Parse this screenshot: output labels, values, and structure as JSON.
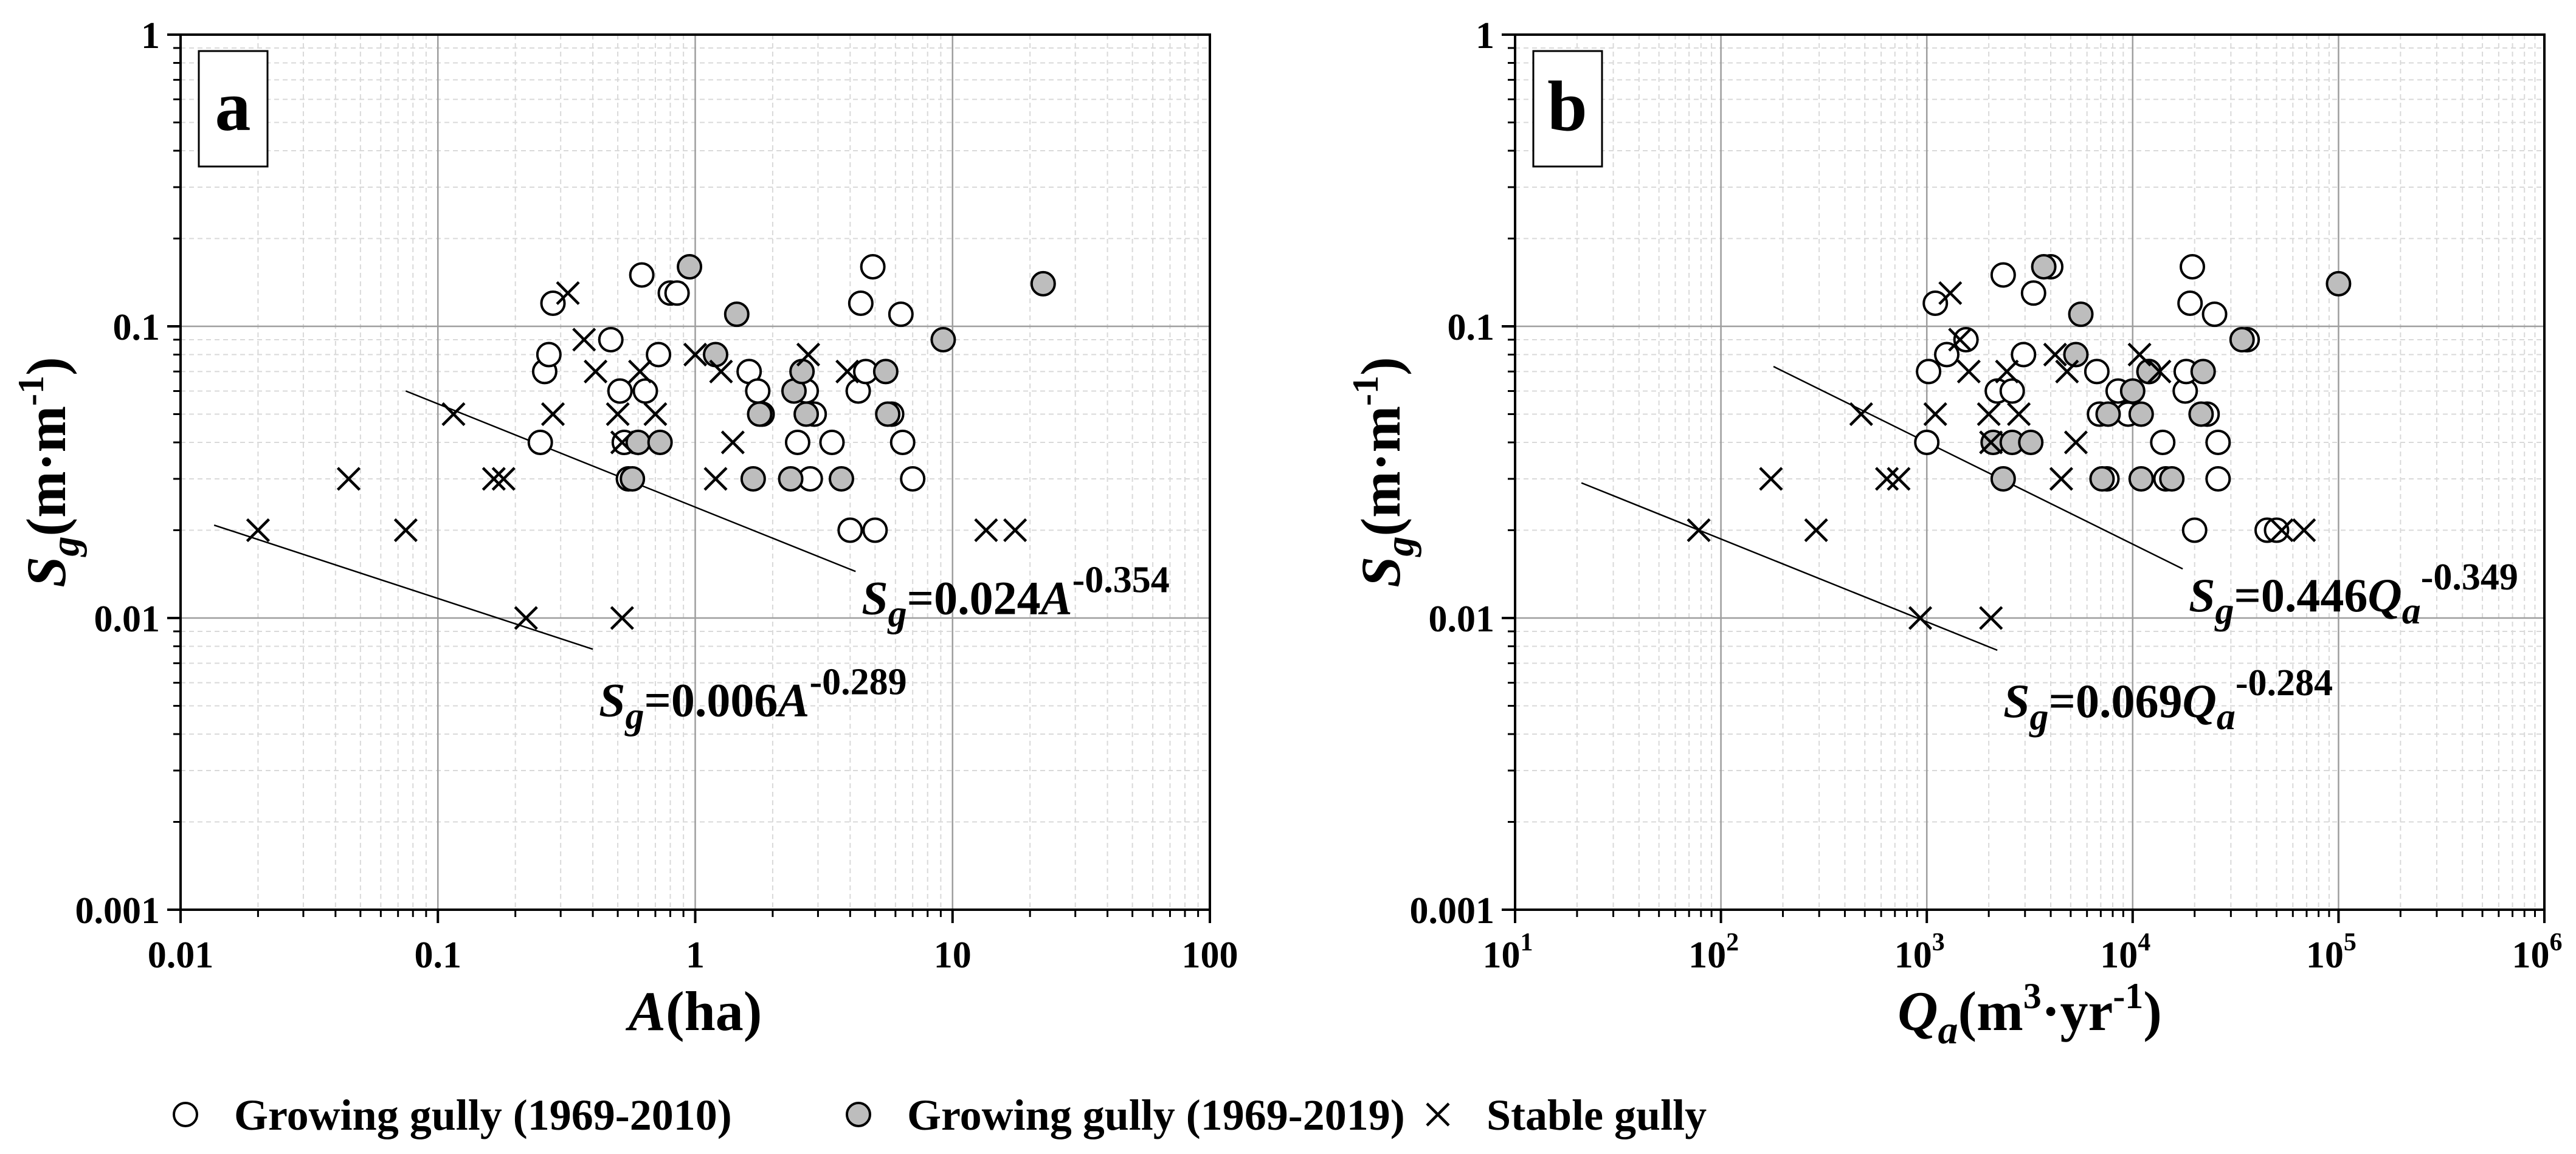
{
  "chart_data": [
    {
      "panel_label": "a",
      "type": "scatter",
      "xscale": "log",
      "yscale": "log",
      "xlim": [
        0.01,
        100
      ],
      "ylim": [
        0.001,
        1
      ],
      "xlabel_main": "A",
      "xlabel_unit": "(ha)",
      "ylabel_main": "S",
      "ylabel_sub": "g",
      "ylabel_unit": "(m·m",
      "ylabel_unit_exp": "-1",
      "ylabel_close": ")",
      "xticks": [
        {
          "value": 0.01,
          "label": "0.01"
        },
        {
          "value": 0.1,
          "label": "0.1"
        },
        {
          "value": 1,
          "label": "1"
        },
        {
          "value": 10,
          "label": "10"
        },
        {
          "value": 100,
          "label": "100"
        }
      ],
      "yticks": [
        {
          "value": 0.001,
          "label": "0.001"
        },
        {
          "value": 0.01,
          "label": "0.01"
        },
        {
          "value": 0.1,
          "label": "0.1"
        },
        {
          "value": 1,
          "label": "1"
        }
      ],
      "series": [
        {
          "name": "Growing gully (1969-2010)",
          "marker": "open-circle",
          "points": [
            [
              0.25,
              0.04
            ],
            [
              0.26,
              0.07
            ],
            [
              0.27,
              0.08
            ],
            [
              0.28,
              0.12
            ],
            [
              0.47,
              0.09
            ],
            [
              0.51,
              0.06
            ],
            [
              0.53,
              0.04
            ],
            [
              0.55,
              0.03
            ],
            [
              0.62,
              0.15
            ],
            [
              0.64,
              0.06
            ],
            [
              0.72,
              0.08
            ],
            [
              0.8,
              0.13
            ],
            [
              0.85,
              0.13
            ],
            [
              1.62,
              0.07
            ],
            [
              1.75,
              0.06
            ],
            [
              1.82,
              0.05
            ],
            [
              2.5,
              0.04
            ],
            [
              2.7,
              0.06
            ],
            [
              2.8,
              0.03
            ],
            [
              2.9,
              0.05
            ],
            [
              3.4,
              0.04
            ],
            [
              4.0,
              0.02
            ],
            [
              4.3,
              0.06
            ],
            [
              4.4,
              0.12
            ],
            [
              4.6,
              0.07
            ],
            [
              4.9,
              0.16
            ],
            [
              5.0,
              0.02
            ],
            [
              5.8,
              0.05
            ],
            [
              6.3,
              0.11
            ],
            [
              6.4,
              0.04
            ],
            [
              7.0,
              0.03
            ]
          ]
        },
        {
          "name": "Growing gully (1969-2019)",
          "marker": "filled-circle",
          "points": [
            [
              0.57,
              0.03
            ],
            [
              0.6,
              0.04
            ],
            [
              0.73,
              0.04
            ],
            [
              0.95,
              0.16
            ],
            [
              1.2,
              0.08
            ],
            [
              1.45,
              0.11
            ],
            [
              1.68,
              0.03
            ],
            [
              1.78,
              0.05
            ],
            [
              2.35,
              0.03
            ],
            [
              2.42,
              0.06
            ],
            [
              2.6,
              0.07
            ],
            [
              2.7,
              0.05
            ],
            [
              3.7,
              0.03
            ],
            [
              5.5,
              0.07
            ],
            [
              5.6,
              0.05
            ],
            [
              9.2,
              0.09
            ],
            [
              22.5,
              0.14
            ]
          ]
        },
        {
          "name": "Stable gully",
          "marker": "cross",
          "points": [
            [
              0.02,
              0.02
            ],
            [
              0.045,
              0.03
            ],
            [
              0.075,
              0.02
            ],
            [
              0.115,
              0.05
            ],
            [
              0.165,
              0.03
            ],
            [
              0.18,
              0.03
            ],
            [
              0.22,
              0.01
            ],
            [
              0.28,
              0.05
            ],
            [
              0.32,
              0.13
            ],
            [
              0.37,
              0.09
            ],
            [
              0.41,
              0.07
            ],
            [
              0.5,
              0.05
            ],
            [
              0.52,
              0.04
            ],
            [
              0.52,
              0.01
            ],
            [
              0.61,
              0.07
            ],
            [
              0.7,
              0.05
            ],
            [
              1.0,
              0.08
            ],
            [
              1.2,
              0.03
            ],
            [
              1.26,
              0.07
            ],
            [
              1.4,
              0.04
            ],
            [
              2.75,
              0.08
            ],
            [
              3.9,
              0.07
            ],
            [
              13.5,
              0.02
            ],
            [
              17.5,
              0.02
            ]
          ]
        }
      ],
      "fits": [
        {
          "name": "growing",
          "coef": 0.024,
          "exp": -0.354,
          "xmin": 0.075,
          "xmax": 4.2,
          "label_main": "S",
          "label_sub": "g",
          "label_eq": "=0.024",
          "label_var": "A",
          "label_exp": "-0.354"
        },
        {
          "name": "stable",
          "coef": 0.006,
          "exp": -0.289,
          "xmin": 0.0135,
          "xmax": 0.4,
          "label_main": "S",
          "label_sub": "g",
          "label_eq": "=0.006",
          "label_var": "A",
          "label_exp": "-0.289"
        }
      ]
    },
    {
      "panel_label": "b",
      "type": "scatter",
      "xscale": "log",
      "yscale": "log",
      "xlim": [
        10,
        1000000
      ],
      "ylim": [
        0.001,
        1
      ],
      "xlabel_main": "Q",
      "xlabel_sub": "a",
      "xlabel_unit": "(m",
      "xlabel_unit_exp1": "3",
      "xlabel_unit_mid": "·yr",
      "xlabel_unit_exp2": "-1",
      "xlabel_close": ")",
      "ylabel_main": "S",
      "ylabel_sub": "g",
      "ylabel_unit": "(m·m",
      "ylabel_unit_exp": "-1",
      "ylabel_close": ")",
      "xticks": [
        {
          "value": 10,
          "base": "10",
          "exp": "1"
        },
        {
          "value": 100,
          "base": "10",
          "exp": "2"
        },
        {
          "value": 1000,
          "base": "10",
          "exp": "3"
        },
        {
          "value": 10000,
          "base": "10",
          "exp": "4"
        },
        {
          "value": 100000,
          "base": "10",
          "exp": "5"
        },
        {
          "value": 1000000,
          "base": "10",
          "exp": "6"
        }
      ],
      "yticks": [
        {
          "value": 0.001,
          "label": "0.001"
        },
        {
          "value": 0.01,
          "label": "0.01"
        },
        {
          "value": 0.1,
          "label": "0.1"
        },
        {
          "value": 1,
          "label": "1"
        }
      ],
      "series": [
        {
          "name": "Growing gully (1969-2010)",
          "marker": "open-circle",
          "points": [
            [
              1000,
              0.04
            ],
            [
              1020,
              0.07
            ],
            [
              1100,
              0.12
            ],
            [
              1250,
              0.08
            ],
            [
              1550,
              0.09
            ],
            [
              2200,
              0.06
            ],
            [
              2350,
              0.15
            ],
            [
              2600,
              0.06
            ],
            [
              2950,
              0.08
            ],
            [
              3300,
              0.13
            ],
            [
              4000,
              0.16
            ],
            [
              6700,
              0.07
            ],
            [
              6900,
              0.05
            ],
            [
              7500,
              0.03
            ],
            [
              8500,
              0.06
            ],
            [
              9500,
              0.05
            ],
            [
              12000,
              0.07
            ],
            [
              14000,
              0.04
            ],
            [
              14500,
              0.03
            ],
            [
              18000,
              0.06
            ],
            [
              18200,
              0.07
            ],
            [
              19500,
              0.16
            ],
            [
              19000,
              0.12
            ],
            [
              20000,
              0.02
            ],
            [
              25000,
              0.11
            ],
            [
              26000,
              0.04
            ],
            [
              26000,
              0.03
            ],
            [
              45000,
              0.02
            ],
            [
              50000,
              0.02
            ],
            [
              36000,
              0.09
            ],
            [
              23000,
              0.05
            ]
          ]
        },
        {
          "name": "Growing gully (1969-2019)",
          "marker": "filled-circle",
          "points": [
            [
              2100,
              0.04
            ],
            [
              2350,
              0.03
            ],
            [
              2600,
              0.04
            ],
            [
              3200,
              0.04
            ],
            [
              3700,
              0.16
            ],
            [
              5300,
              0.08
            ],
            [
              5600,
              0.11
            ],
            [
              7100,
              0.03
            ],
            [
              7600,
              0.05
            ],
            [
              10000,
              0.06
            ],
            [
              11000,
              0.03
            ],
            [
              11000,
              0.05
            ],
            [
              12000,
              0.07
            ],
            [
              15500,
              0.03
            ],
            [
              21500,
              0.05
            ],
            [
              22000,
              0.07
            ],
            [
              34000,
              0.09
            ],
            [
              100000,
              0.14
            ]
          ]
        },
        {
          "name": "Stable gully",
          "marker": "cross",
          "points": [
            [
              78,
              0.02
            ],
            [
              175,
              0.03
            ],
            [
              290,
              0.02
            ],
            [
              480,
              0.05
            ],
            [
              640,
              0.03
            ],
            [
              730,
              0.03
            ],
            [
              930,
              0.01
            ],
            [
              1100,
              0.05
            ],
            [
              1300,
              0.13
            ],
            [
              1450,
              0.09
            ],
            [
              1600,
              0.07
            ],
            [
              2000,
              0.05
            ],
            [
              2050,
              0.04
            ],
            [
              2050,
              0.01
            ],
            [
              2450,
              0.07
            ],
            [
              2800,
              0.05
            ],
            [
              4200,
              0.08
            ],
            [
              4500,
              0.03
            ],
            [
              4800,
              0.07
            ],
            [
              5300,
              0.04
            ],
            [
              10800,
              0.08
            ],
            [
              13500,
              0.07
            ],
            [
              53000,
              0.02
            ],
            [
              68000,
              0.02
            ]
          ]
        }
      ],
      "fits": [
        {
          "name": "growing",
          "coef": 0.446,
          "exp": -0.349,
          "xmin": 180,
          "xmax": 17500,
          "label_main": "S",
          "label_sub": "g",
          "label_eq": "=0.446",
          "label_var": "Q",
          "label_var_sub": "a",
          "label_exp": "-0.349"
        },
        {
          "name": "stable",
          "coef": 0.069,
          "exp": -0.284,
          "xmin": 21,
          "xmax": 2200,
          "label_main": "S",
          "label_sub": "g",
          "label_eq": "=0.069",
          "label_var": "Q",
          "label_var_sub": "a",
          "label_exp": "-0.284"
        }
      ]
    }
  ],
  "legend": {
    "items": [
      {
        "marker": "open-circle",
        "label": "Growing gully (1969-2010)"
      },
      {
        "marker": "filled-circle",
        "label": "Growing gully (1969-2019)"
      },
      {
        "marker": "cross",
        "label": "Stable gully"
      }
    ]
  },
  "colors": {
    "marker_fill_grey": "#bdbdbd",
    "major_grid": "#9e9e9e",
    "minor_grid": "#d9d9d9",
    "ink": "#000000"
  }
}
